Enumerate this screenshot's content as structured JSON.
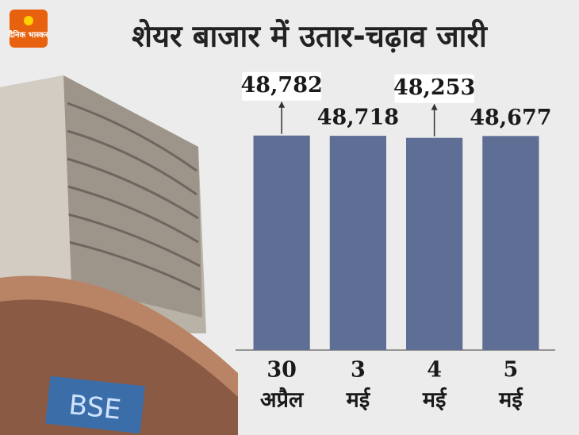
{
  "logo": "दैनिक भास्कर",
  "chart_data": {
    "type": "bar",
    "title": "शेयर बाजार में उतार-चढ़ाव जारी",
    "categories": [
      [
        "30",
        "अप्रैल"
      ],
      [
        "3",
        "मई"
      ],
      [
        "4",
        "मई"
      ],
      [
        "5",
        "मई"
      ]
    ],
    "values": [
      48782,
      48718,
      48253,
      48677
    ],
    "value_labels": [
      "48,782",
      "48,718",
      "48,253",
      "48,677"
    ],
    "color": "#5f6e95",
    "ylim": [
      0,
      50000
    ]
  }
}
